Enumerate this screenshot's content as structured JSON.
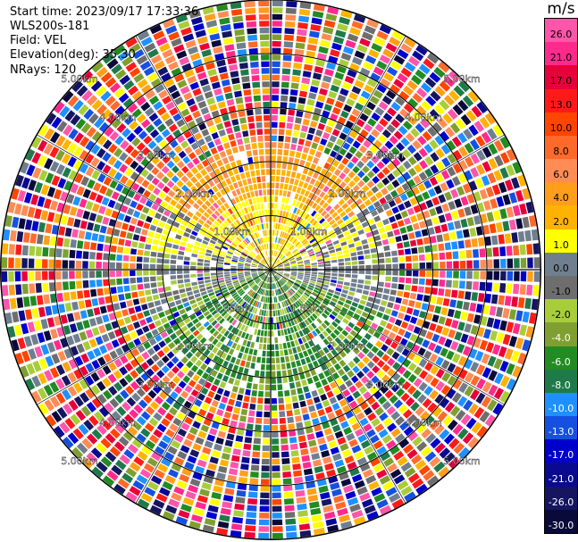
{
  "header": {
    "start_time": "Start time: 2023/09/17 17:33:36",
    "device": "WLS200s-181",
    "field": "Field: VEL",
    "elevation": "Elevation(deg): 35.30",
    "nrays": "NRays: 120"
  },
  "chart_data": {
    "type": "polar-ppi",
    "field": "VEL",
    "rays": 120,
    "range_rings": [
      {
        "range_km": 1.0,
        "label": "1.00km"
      },
      {
        "range_km": 2.0,
        "label": "2.00km"
      },
      {
        "range_km": 3.0,
        "label": "3.00km"
      },
      {
        "range_km": 4.0,
        "label": "4.00km"
      },
      {
        "range_km": 5.0,
        "label": "5.00km"
      }
    ],
    "max_range_km": 5.4,
    "colorbar": {
      "unit": "m/s",
      "ticks": [
        "26.0",
        "21.0",
        "17.0",
        "13.0",
        "10.0",
        "8.0",
        "6.0",
        "4.0",
        "2.0",
        "1.0",
        "0.0",
        "-1.0",
        "-2.0",
        "-4.0",
        "-6.0",
        "-8.0",
        "-10.0",
        "-13.0",
        "-17.0",
        "-21.0",
        "-26.0",
        "-30.0"
      ],
      "colors": [
        "#ff55aa",
        "#ff2a8c",
        "#e8003a",
        "#ff1a1a",
        "#ff4500",
        "#ff6a2a",
        "#ff8c55",
        "#ff9e1a",
        "#ffb300",
        "#ffff00",
        "#6f7f8f",
        "#6e6e6e",
        "#a8cd3a",
        "#7fa030",
        "#228b22",
        "#1f7a4a",
        "#1e90ff",
        "#1550e0",
        "#0000cd",
        "#0a0a90",
        "#151560",
        "#0a0a3a"
      ]
    }
  }
}
